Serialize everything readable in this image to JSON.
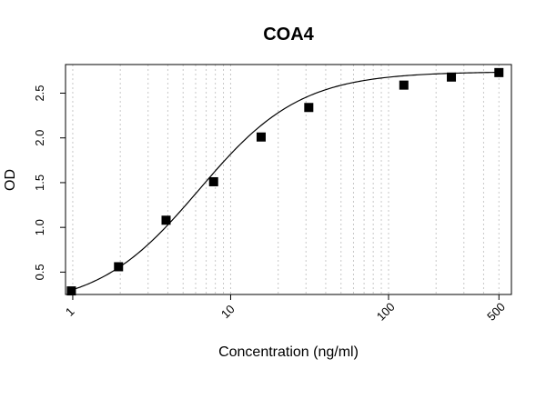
{
  "chart_data": {
    "type": "scatter",
    "title": "COA4",
    "xlabel": "Concentration (ng/ml)",
    "ylabel": "OD",
    "x_scale": "log",
    "xlim": [
      0.9,
      600
    ],
    "ylim": [
      0.25,
      2.82
    ],
    "x_ticks": [
      {
        "value": 1,
        "label": "1"
      },
      {
        "value": 10,
        "label": "10"
      },
      {
        "value": 100,
        "label": "100"
      },
      {
        "value": 500,
        "label": "500"
      }
    ],
    "y_ticks": [
      {
        "value": 0.5,
        "label": "0.5"
      },
      {
        "value": 1.0,
        "label": "1.0"
      },
      {
        "value": 1.5,
        "label": "1.5"
      },
      {
        "value": 2.0,
        "label": "2.0"
      },
      {
        "value": 2.5,
        "label": "2.5"
      }
    ],
    "grid": "vertical-dotted",
    "marker": "square",
    "marker_color": "#000000",
    "line_color": "#000000",
    "points": [
      {
        "x": 0.98,
        "y": 0.29
      },
      {
        "x": 1.95,
        "y": 0.56
      },
      {
        "x": 3.9,
        "y": 1.08
      },
      {
        "x": 7.8,
        "y": 1.51
      },
      {
        "x": 15.6,
        "y": 2.01
      },
      {
        "x": 31.25,
        "y": 2.34
      },
      {
        "x": 125,
        "y": 2.59
      },
      {
        "x": 250,
        "y": 2.68
      },
      {
        "x": 500,
        "y": 2.73
      }
    ],
    "curve": {
      "model": "4PL",
      "bottom": 0.1,
      "top": 2.74,
      "ec50": 6.3,
      "hill": 1.35
    }
  }
}
